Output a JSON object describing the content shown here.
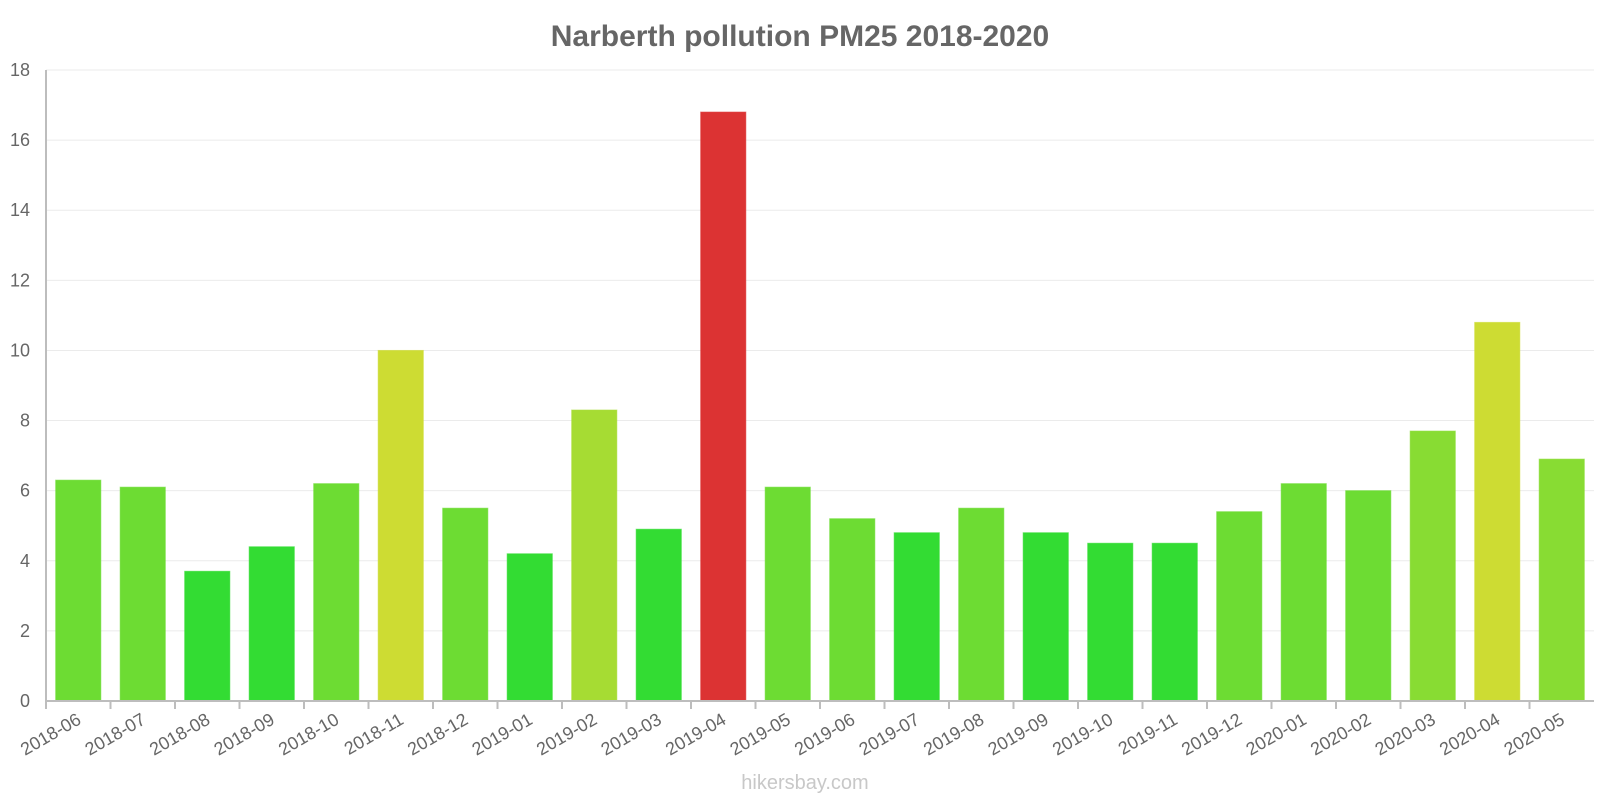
{
  "chart_data": {
    "type": "bar",
    "title": "Narberth pollution PM25 2018-2020",
    "xlabel": "",
    "ylabel": "",
    "ylim": [
      0,
      18
    ],
    "yticks": [
      0,
      2,
      4,
      6,
      8,
      10,
      12,
      14,
      16,
      18
    ],
    "grid": true,
    "legend": "none",
    "categories": [
      "2018-06",
      "2018-07",
      "2018-08",
      "2018-09",
      "2018-10",
      "2018-11",
      "2018-12",
      "2019-01",
      "2019-02",
      "2019-03",
      "2019-04",
      "2019-05",
      "2019-06",
      "2019-07",
      "2019-08",
      "2019-09",
      "2019-10",
      "2019-11",
      "2019-12",
      "2020-01",
      "2020-02",
      "2020-03",
      "2020-04",
      "2020-05"
    ],
    "values": [
      6.3,
      6.1,
      3.7,
      4.4,
      6.2,
      10.0,
      5.5,
      4.2,
      8.3,
      4.9,
      16.8,
      6.1,
      5.2,
      4.8,
      5.5,
      4.8,
      4.5,
      4.5,
      5.4,
      6.2,
      6.0,
      7.7,
      10.8,
      6.9
    ],
    "colors": [
      "#6ddc33",
      "#6ddc33",
      "#33dc33",
      "#33dc33",
      "#6ddc33",
      "#cddc33",
      "#6ddc33",
      "#33dc33",
      "#a6dc33",
      "#33dc33",
      "#dc3333",
      "#6ddc33",
      "#6ddc33",
      "#33dc33",
      "#6ddc33",
      "#33dc33",
      "#33dc33",
      "#33dc33",
      "#6ddc33",
      "#6ddc33",
      "#6ddc33",
      "#88dc33",
      "#cddc33",
      "#88dc33"
    ]
  },
  "watermark": "hikersbay.com"
}
